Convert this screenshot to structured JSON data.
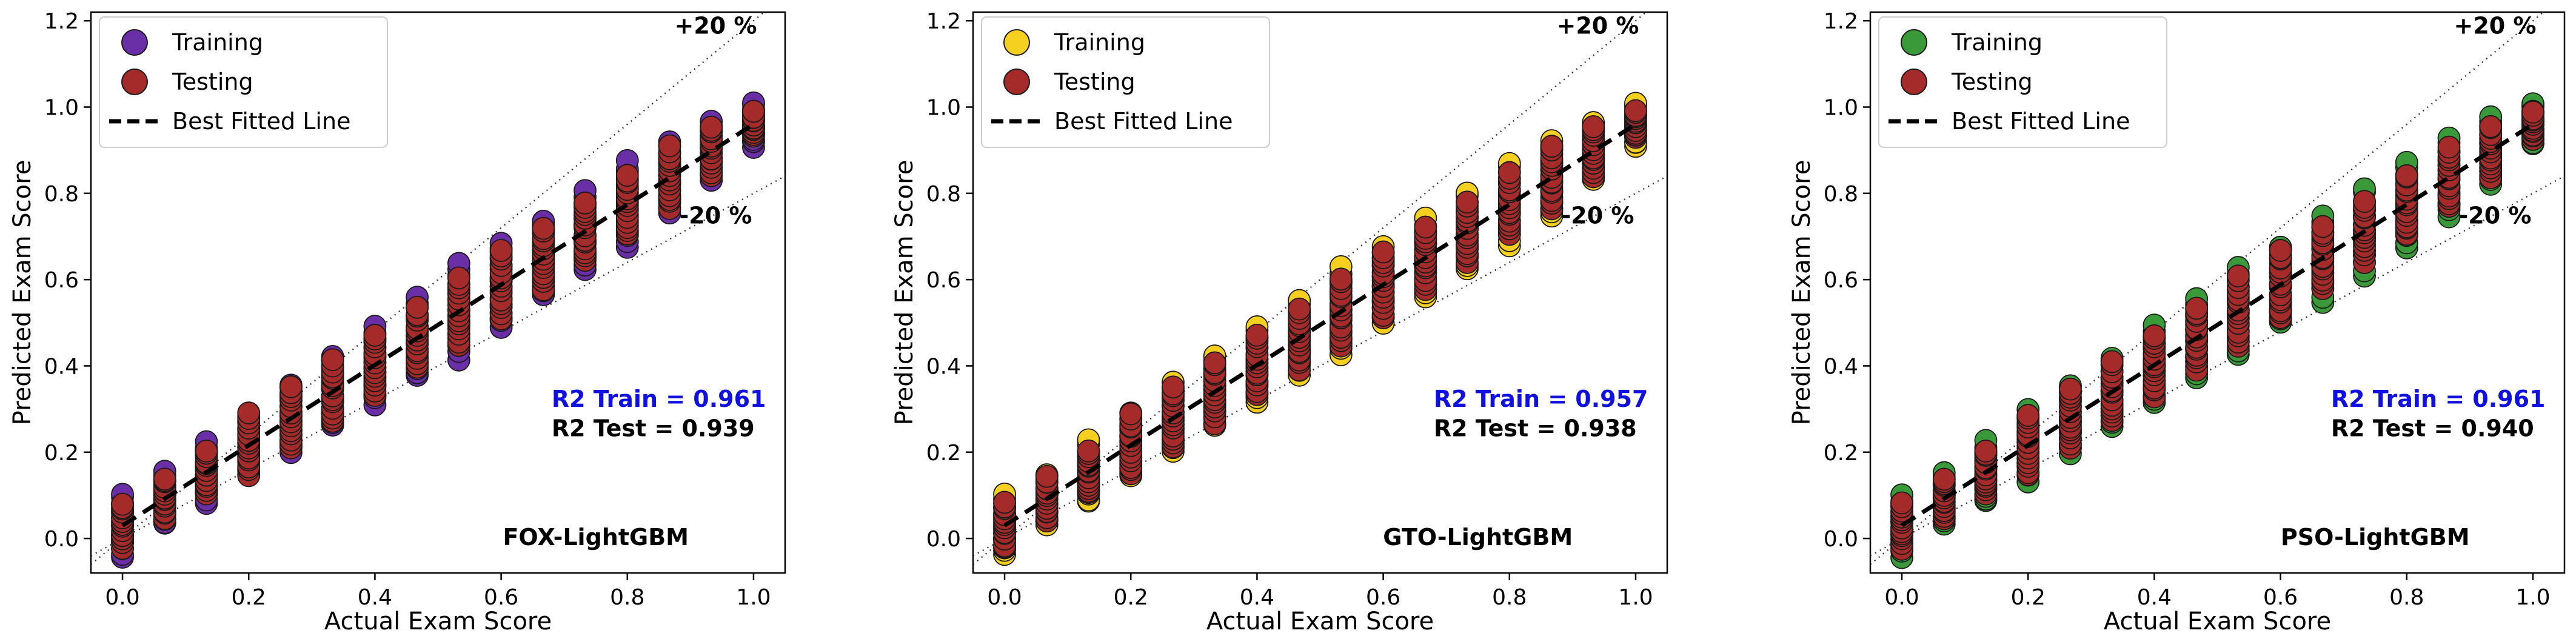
{
  "chart_data": [
    {
      "type": "scatter",
      "title": "",
      "xlabel": "Actual Exam Score",
      "ylabel": "Predicted Exam Score",
      "xlim": [
        -0.05,
        1.05
      ],
      "ylim": [
        -0.08,
        1.22
      ],
      "xticks": [
        "0.0",
        "0.2",
        "0.4",
        "0.6",
        "0.8",
        "1.0"
      ],
      "yticks": [
        "0.0",
        "0.2",
        "0.4",
        "0.6",
        "0.8",
        "1.0",
        "1.2"
      ],
      "categories_x": [
        0.0,
        0.067,
        0.133,
        0.2,
        0.267,
        0.333,
        0.4,
        0.467,
        0.533,
        0.6,
        0.667,
        0.733,
        0.8,
        0.867,
        0.933,
        1.0
      ],
      "series": [
        {
          "name": "Training",
          "color": "#6a2ea6",
          "spread": [
            0.075,
            0.06,
            0.07,
            0.07,
            0.08,
            0.08,
            0.09,
            0.09,
            0.11,
            0.1,
            0.09,
            0.09,
            0.1,
            0.08,
            0.07,
            0.05
          ]
        },
        {
          "name": "Testing",
          "color": "#a52a2a",
          "spread": [
            0.05,
            0.05,
            0.05,
            0.07,
            0.07,
            0.07,
            0.07,
            0.07,
            0.08,
            0.08,
            0.07,
            0.07,
            0.07,
            0.07,
            0.06,
            0.03
          ]
        },
        {
          "name": "Best Fitted Line",
          "color": "#000000",
          "slope": 0.93,
          "intercept": 0.03
        }
      ],
      "bands": {
        "upper_label": "+20 %",
        "lower_label": "-20 %",
        "percent": 0.2
      },
      "metrics": {
        "train": "R2 Train = 0.961",
        "test": "R2 Test  = 0.939",
        "train_color": "#1010e0",
        "test_color": "#000000"
      },
      "model_label": "FOX-LightGBM"
    },
    {
      "type": "scatter",
      "title": "",
      "xlabel": "Actual Exam Score",
      "ylabel": "Predicted Exam Score",
      "xlim": [
        -0.05,
        1.05
      ],
      "ylim": [
        -0.08,
        1.22
      ],
      "xticks": [
        "0.0",
        "0.2",
        "0.4",
        "0.6",
        "0.8",
        "1.0"
      ],
      "yticks": [
        "0.0",
        "0.2",
        "0.4",
        "0.6",
        "0.8",
        "1.0",
        "1.2"
      ],
      "categories_x": [
        0.0,
        0.067,
        0.133,
        0.2,
        0.267,
        0.333,
        0.4,
        0.467,
        0.533,
        0.6,
        0.667,
        0.733,
        0.8,
        0.867,
        0.933,
        1.0
      ],
      "series": [
        {
          "name": "Training",
          "color": "#f5d020",
          "spread": [
            0.07,
            0.06,
            0.07,
            0.07,
            0.08,
            0.08,
            0.09,
            0.09,
            0.1,
            0.09,
            0.09,
            0.09,
            0.1,
            0.09,
            0.07,
            0.05
          ]
        },
        {
          "name": "Testing",
          "color": "#a52a2a",
          "spread": [
            0.05,
            0.05,
            0.05,
            0.07,
            0.07,
            0.07,
            0.07,
            0.07,
            0.08,
            0.08,
            0.07,
            0.07,
            0.07,
            0.07,
            0.06,
            0.03
          ]
        },
        {
          "name": "Best Fitted Line",
          "color": "#000000",
          "slope": 0.93,
          "intercept": 0.03
        }
      ],
      "bands": {
        "upper_label": "+20 %",
        "lower_label": "-20 %",
        "percent": 0.2
      },
      "metrics": {
        "train": "R2 Train = 0.957",
        "test": "R2 Test  = 0.938",
        "train_color": "#1010e0",
        "test_color": "#000000"
      },
      "model_label": "GTO-LightGBM"
    },
    {
      "type": "scatter",
      "title": "",
      "xlabel": "Actual Exam Score",
      "ylabel": "Predicted Exam Score",
      "xlim": [
        -0.05,
        1.05
      ],
      "ylim": [
        -0.08,
        1.22
      ],
      "xticks": [
        "0.0",
        "0.2",
        "0.4",
        "0.6",
        "0.8",
        "1.0"
      ],
      "yticks": [
        "0.0",
        "0.2",
        "0.4",
        "0.6",
        "0.8",
        "1.0",
        "1.2"
      ],
      "categories_x": [
        0.0,
        0.067,
        0.133,
        0.2,
        0.267,
        0.333,
        0.4,
        0.467,
        0.533,
        0.6,
        0.667,
        0.733,
        0.8,
        0.867,
        0.933,
        1.0
      ],
      "series": [
        {
          "name": "Training",
          "color": "#3a9a3a",
          "spread": [
            0.07,
            0.06,
            0.07,
            0.08,
            0.08,
            0.08,
            0.09,
            0.09,
            0.1,
            0.09,
            0.1,
            0.1,
            0.1,
            0.09,
            0.08,
            0.05
          ]
        },
        {
          "name": "Testing",
          "color": "#a52a2a",
          "spread": [
            0.05,
            0.05,
            0.05,
            0.07,
            0.07,
            0.07,
            0.07,
            0.07,
            0.08,
            0.08,
            0.07,
            0.07,
            0.07,
            0.07,
            0.06,
            0.03
          ]
        },
        {
          "name": "Best Fitted Line",
          "color": "#000000",
          "slope": 0.93,
          "intercept": 0.03
        }
      ],
      "bands": {
        "upper_label": "+20 %",
        "lower_label": "-20 %",
        "percent": 0.2
      },
      "metrics": {
        "train": "R2 Train = 0.961",
        "test": "R2 Test  = 0.940",
        "train_color": "#1010e0",
        "test_color": "#000000"
      },
      "model_label": "PSO-LightGBM"
    }
  ]
}
